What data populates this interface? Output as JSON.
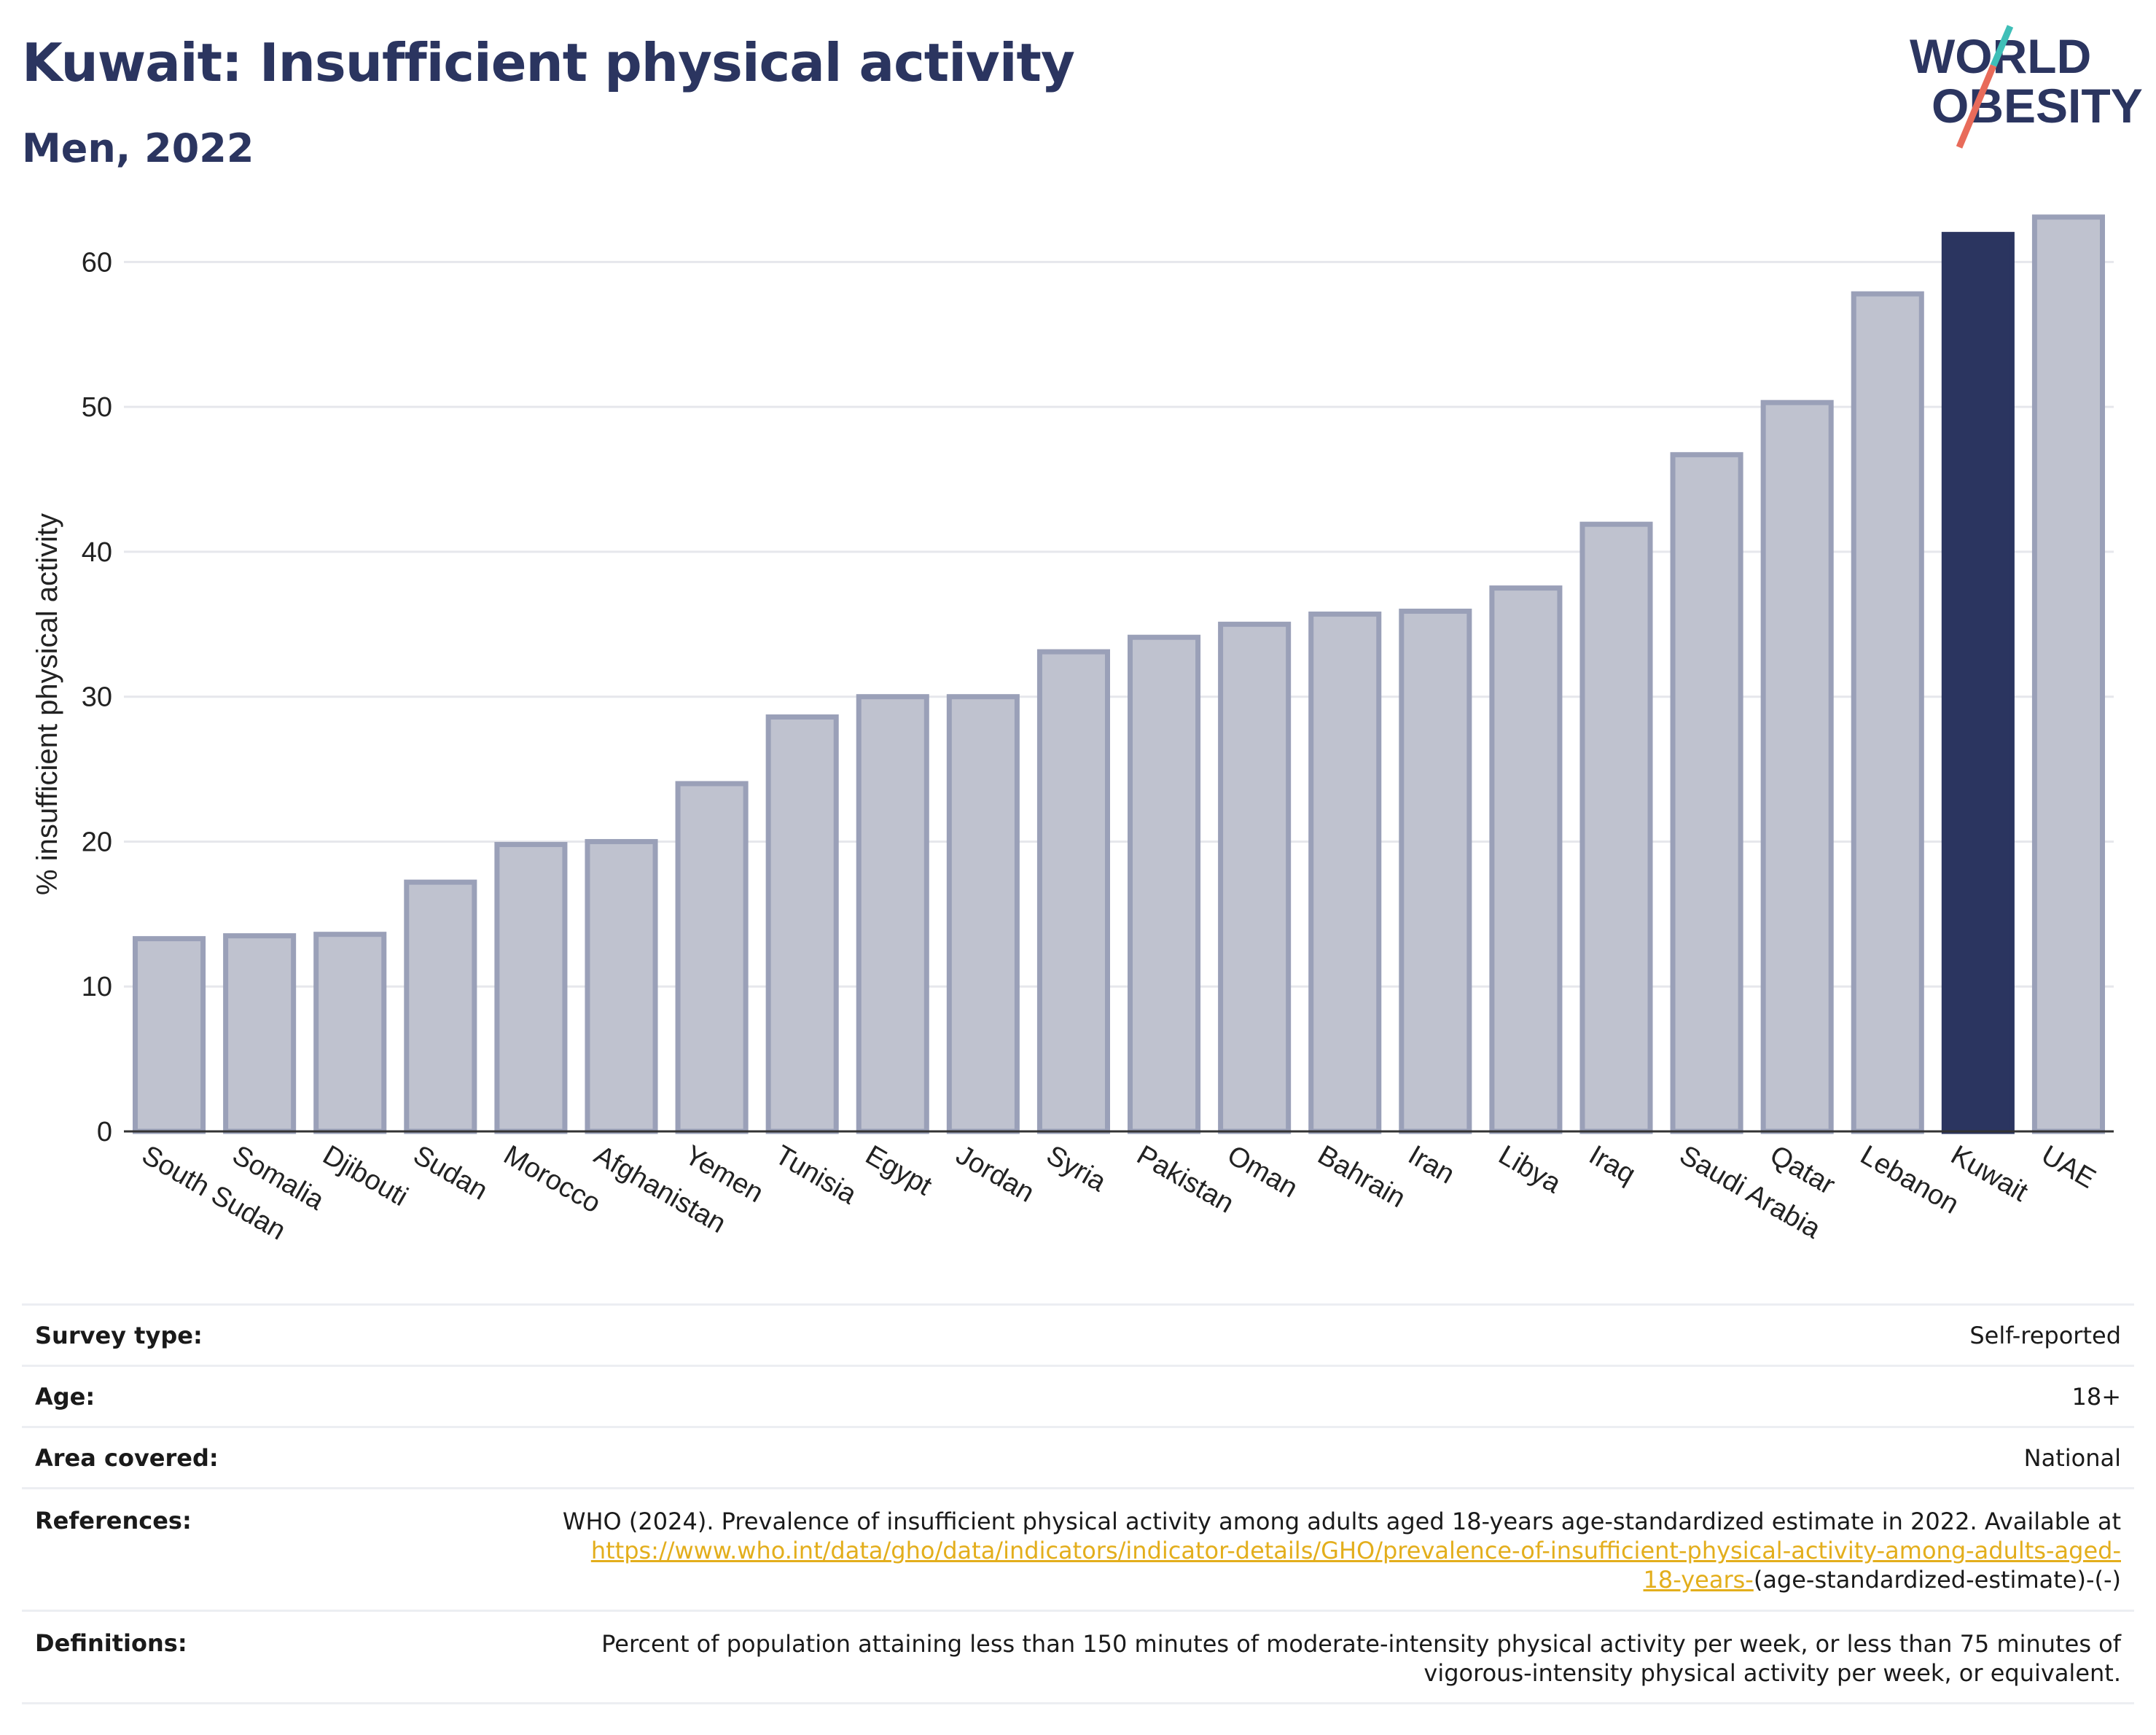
{
  "title": "Kuwait: Insufficient physical activity",
  "subtitle": "Men, 2022",
  "logo": {
    "line1": "WORLD",
    "line2": "OBESITY"
  },
  "colors": {
    "highlight": "#2b3560",
    "bar": "#bfc2cf",
    "bar_border": "#9aa0b8",
    "title": "#2b3560",
    "link": "#e3ae1c"
  },
  "chart_data": {
    "type": "bar",
    "title": "",
    "xlabel": "",
    "ylabel": "% insufficient physical activity",
    "ylim": [
      0,
      65
    ],
    "yticks": [
      0,
      10,
      20,
      30,
      40,
      50,
      60
    ],
    "grid": true,
    "highlight": "Kuwait",
    "categories": [
      "South Sudan",
      "Somalia",
      "Djibouti",
      "Sudan",
      "Morocco",
      "Afghanistan",
      "Yemen",
      "Tunisia",
      "Egypt",
      "Jordan",
      "Syria",
      "Pakistan",
      "Oman",
      "Bahrain",
      "Iran",
      "Libya",
      "Iraq",
      "Saudi Arabia",
      "Qatar",
      "Lebanon",
      "Kuwait",
      "UAE"
    ],
    "values": [
      13.3,
      13.5,
      13.6,
      17.2,
      19.8,
      20.0,
      24.0,
      28.6,
      30.0,
      30.0,
      33.1,
      34.1,
      35.0,
      35.7,
      35.9,
      37.5,
      41.9,
      46.7,
      50.3,
      57.8,
      61.9,
      63.1
    ]
  },
  "meta": [
    {
      "label": "Survey type:",
      "value": "Self-reported"
    },
    {
      "label": "Age:",
      "value": "18+"
    },
    {
      "label": "Area covered:",
      "value": "National"
    },
    {
      "label": "References:",
      "text1": "WHO (2024). Prevalence of insufficient physical activity among adults aged 18-years age-standardized estimate in 2022. Available at",
      "link_a": "https://www.who.int/data/gho/data/indicators/indicator-details/GHO/prevalence-of-insufficient-physical-activity-among-adults-aged-",
      "link_b": "18-years-",
      "tail": "(age-standardized-estimate)-(-)"
    },
    {
      "label": "Definitions:",
      "line1": "Percent of population attaining less than 150 minutes of moderate-intensity physical activity per week, or less than 75 minutes of",
      "line2": "vigorous-intensity physical activity per week, or equivalent."
    }
  ]
}
